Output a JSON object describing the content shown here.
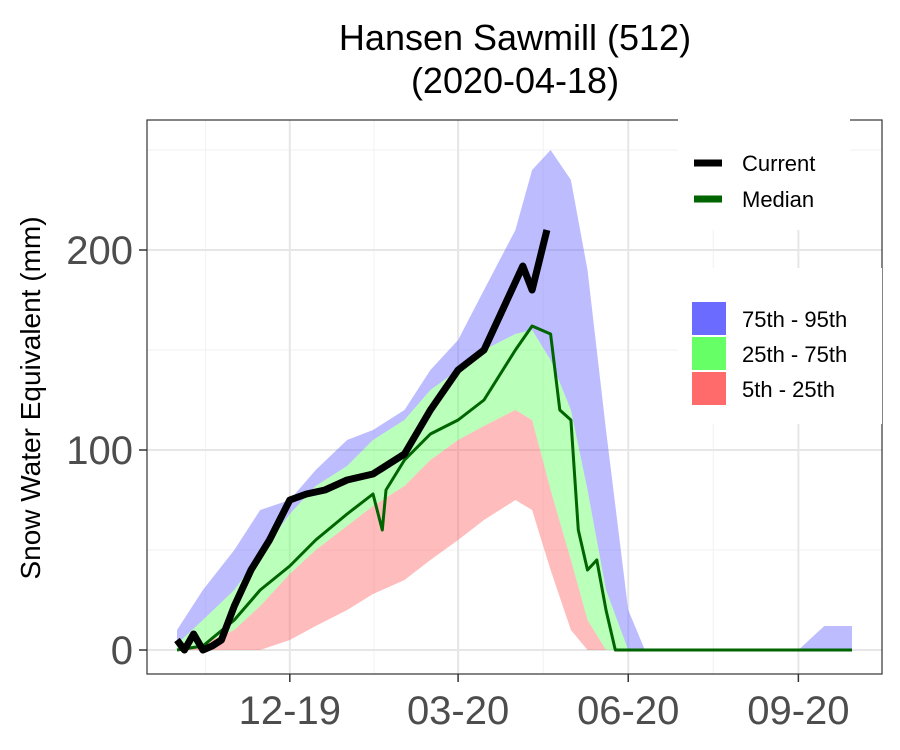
{
  "chart_data": {
    "type": "area",
    "title": "Hansen Sawmill (512)",
    "subtitle": "(2020-04-18)",
    "xlabel": "",
    "ylabel": "Snow Water Equivalent (mm)",
    "xlim": [
      "2019-10-01",
      "2020-09-30"
    ],
    "ylim": [
      -12,
      265
    ],
    "y_ticks": [
      0,
      100,
      200
    ],
    "y_tick_labels": [
      "0",
      "100",
      "200"
    ],
    "x_ticks": [
      "2019-12-01",
      "2020-03-01",
      "2020-06-01",
      "2020-09-01"
    ],
    "x_tick_labels": [
      "12-19",
      "03-20",
      "06-20",
      "09-20"
    ],
    "grid": true,
    "legend": {
      "position": "right",
      "lines": [
        {
          "label": "Current",
          "color": "#000000"
        },
        {
          "label": "Median",
          "color": "#006400"
        }
      ],
      "fills": [
        {
          "label": "75th - 95th",
          "color": "#6b6bff"
        },
        {
          "label": "25th - 75th",
          "color": "#66ff66"
        },
        {
          "label": "5th - 25th",
          "color": "#ff6b6b"
        }
      ]
    },
    "bands": {
      "x": [
        "2019-10-01",
        "2019-10-15",
        "2019-11-01",
        "2019-11-15",
        "2019-12-01",
        "2019-12-15",
        "2020-01-01",
        "2020-01-15",
        "2020-02-01",
        "2020-02-15",
        "2020-03-01",
        "2020-03-15",
        "2020-04-01",
        "2020-04-10",
        "2020-04-20",
        "2020-05-01",
        "2020-05-10",
        "2020-05-20",
        "2020-06-01",
        "2020-06-10",
        "2020-07-01",
        "2020-08-01",
        "2020-08-15",
        "2020-09-01",
        "2020-09-15",
        "2020-09-30"
      ],
      "p95": [
        10,
        30,
        50,
        70,
        75,
        90,
        105,
        110,
        120,
        140,
        155,
        180,
        210,
        240,
        250,
        235,
        190,
        110,
        20,
        0,
        0,
        0,
        0,
        0,
        12,
        12
      ],
      "p75": [
        3,
        15,
        30,
        48,
        68,
        82,
        92,
        105,
        115,
        130,
        140,
        150,
        158,
        160,
        145,
        120,
        80,
        30,
        0,
        0,
        0,
        0,
        0,
        0,
        0,
        0
      ],
      "p25": [
        0,
        3,
        10,
        22,
        38,
        50,
        62,
        72,
        82,
        95,
        105,
        112,
        120,
        115,
        80,
        45,
        15,
        0,
        0,
        0,
        0,
        0,
        0,
        0,
        0,
        0
      ],
      "p5": [
        0,
        0,
        0,
        0,
        5,
        12,
        20,
        28,
        35,
        45,
        55,
        65,
        75,
        70,
        40,
        10,
        0,
        0,
        0,
        0,
        0,
        0,
        0,
        0,
        0,
        0
      ]
    },
    "series": [
      {
        "name": "Current",
        "color": "#000000",
        "x": [
          "2019-10-01",
          "2019-10-05",
          "2019-10-10",
          "2019-10-15",
          "2019-10-20",
          "2019-10-25",
          "2019-11-01",
          "2019-11-10",
          "2019-11-20",
          "2019-12-01",
          "2019-12-10",
          "2019-12-20",
          "2020-01-01",
          "2020-01-15",
          "2020-02-01",
          "2020-02-15",
          "2020-03-01",
          "2020-03-15",
          "2020-03-25",
          "2020-04-05",
          "2020-04-10",
          "2020-04-14",
          "2020-04-18"
        ],
        "values": [
          5,
          0,
          8,
          0,
          2,
          5,
          22,
          40,
          55,
          75,
          78,
          80,
          85,
          88,
          98,
          120,
          140,
          150,
          170,
          192,
          180,
          195,
          210
        ]
      },
      {
        "name": "Median",
        "color": "#006400",
        "x": [
          "2019-10-01",
          "2019-10-15",
          "2019-11-01",
          "2019-11-15",
          "2019-12-01",
          "2019-12-15",
          "2020-01-01",
          "2020-01-15",
          "2020-01-20",
          "2020-01-22",
          "2020-02-01",
          "2020-02-15",
          "2020-03-01",
          "2020-03-15",
          "2020-04-01",
          "2020-04-10",
          "2020-04-20",
          "2020-04-25",
          "2020-05-01",
          "2020-05-05",
          "2020-05-10",
          "2020-05-15",
          "2020-05-20",
          "2020-05-25",
          "2020-06-01",
          "2020-09-30"
        ],
        "values": [
          0,
          2,
          15,
          30,
          42,
          55,
          68,
          78,
          60,
          80,
          95,
          108,
          115,
          125,
          150,
          162,
          158,
          120,
          115,
          60,
          40,
          45,
          20,
          0,
          0,
          0
        ]
      }
    ]
  }
}
